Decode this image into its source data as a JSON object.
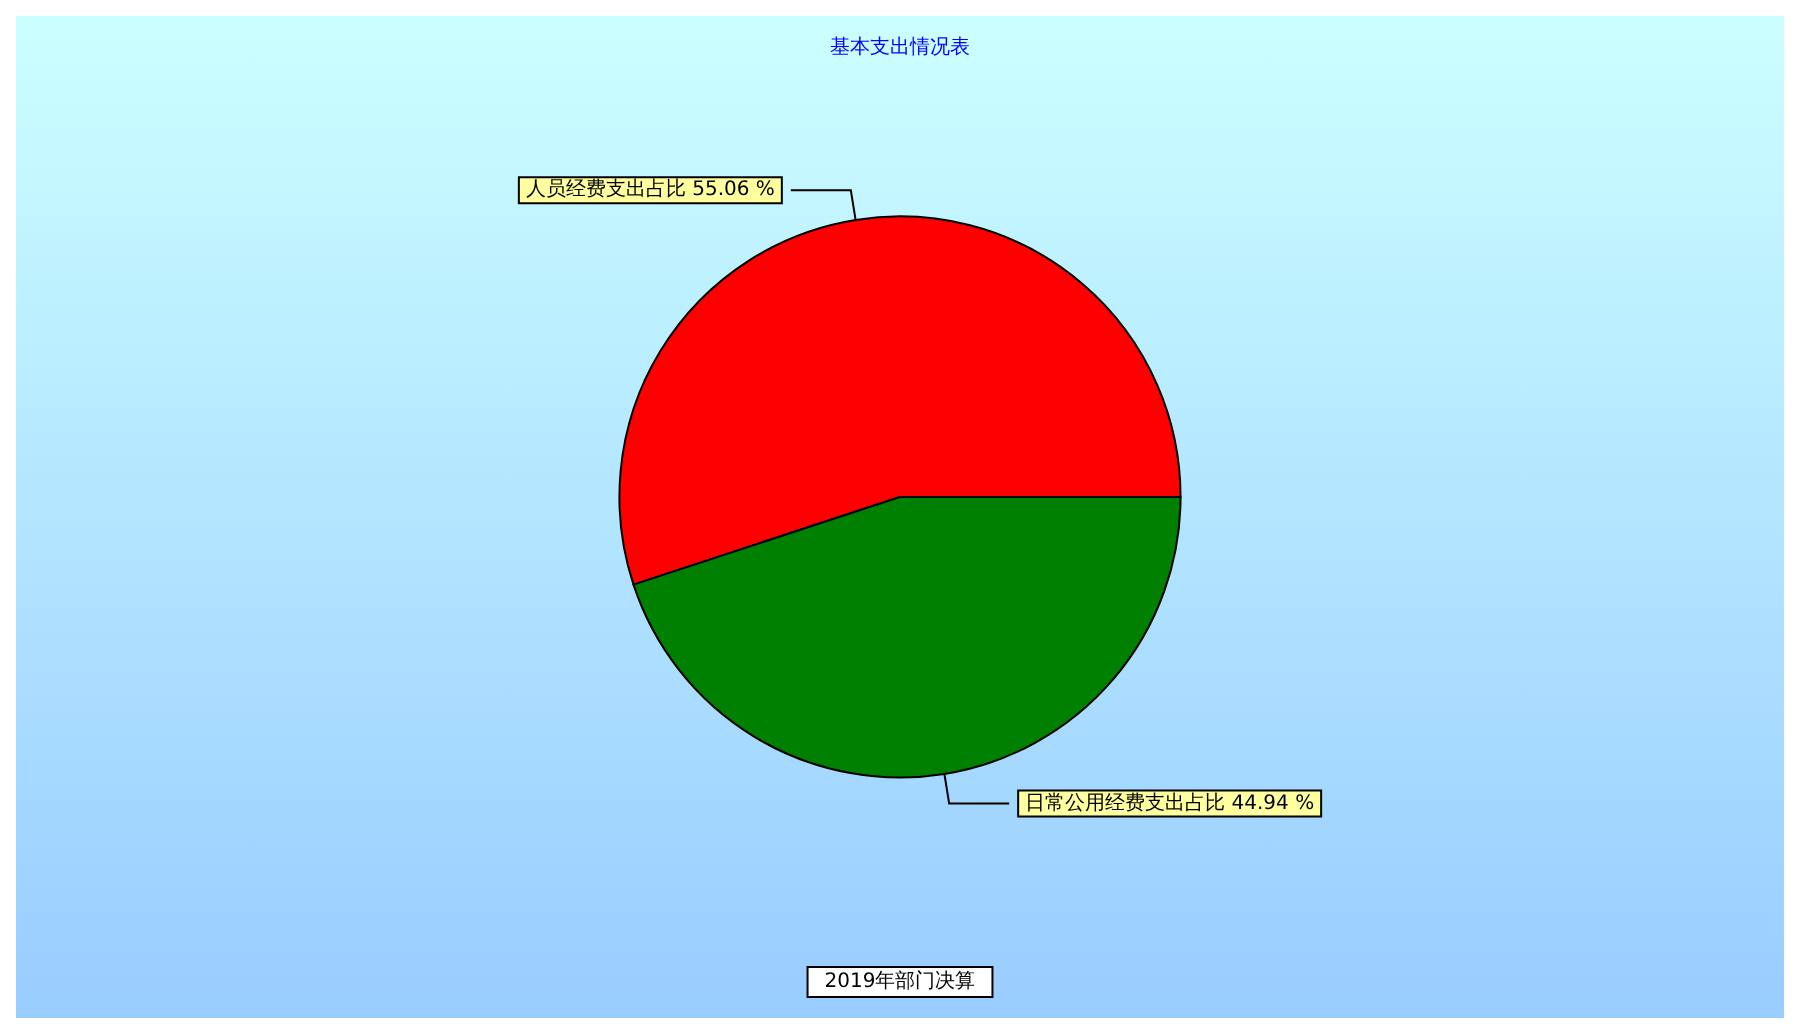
{
  "chart_data": {
    "type": "pie",
    "title": "基本支出情况表",
    "categories": [
      "人员经费支出占比",
      "日常公用经费支出占比"
    ],
    "values": [
      55.06,
      44.94
    ],
    "value_labels": [
      "55.06 %",
      "44.94 %"
    ],
    "colors": [
      "#ff0000",
      "#008000"
    ],
    "annotations": [
      "2019年部门决算"
    ],
    "legend": false
  }
}
